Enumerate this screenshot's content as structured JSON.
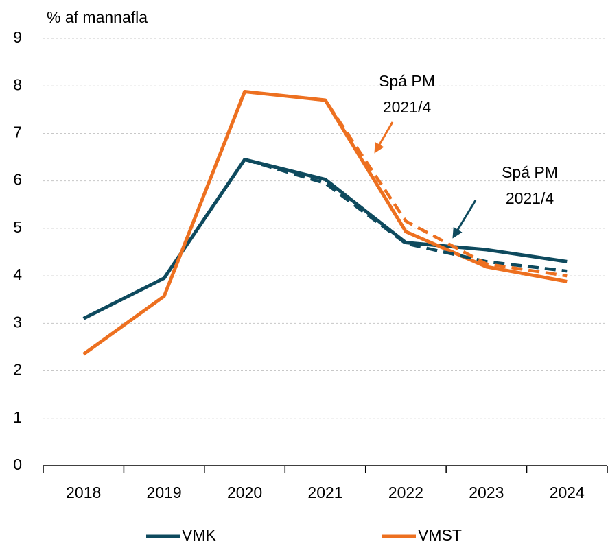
{
  "chart_data": {
    "type": "line",
    "y_label": "% af mannafla",
    "categories": [
      "2018",
      "2019",
      "2020",
      "2021",
      "2022",
      "2023",
      "2024"
    ],
    "series": [
      {
        "name": "VMK",
        "color": "#0e4a5e",
        "values": [
          3.1,
          3.95,
          6.45,
          6.03,
          4.7,
          4.55,
          4.3
        ]
      },
      {
        "name": "VMST",
        "color": "#ed7020",
        "values": [
          2.35,
          3.57,
          7.88,
          7.7,
          4.93,
          4.19,
          3.88
        ]
      },
      {
        "color": "#0e4a5e",
        "dashed": true,
        "values": [
          null,
          null,
          6.45,
          5.95,
          4.68,
          4.3,
          4.1
        ]
      },
      {
        "color": "#ed7020",
        "dashed": true,
        "values": [
          null,
          null,
          7.88,
          7.7,
          5.15,
          4.25,
          4.0
        ]
      }
    ],
    "annotations": [
      {
        "lines": [
          "Spá PM",
          "2021/4"
        ],
        "color": "#ed7020"
      },
      {
        "lines": [
          "Spá PM",
          "2021/4"
        ],
        "color": "#0e4a5e"
      }
    ],
    "ylim": [
      0,
      9
    ],
    "yticks": [
      0,
      1,
      2,
      3,
      4,
      5,
      6,
      7,
      8,
      9
    ],
    "grid": true,
    "legend": "bottom"
  }
}
